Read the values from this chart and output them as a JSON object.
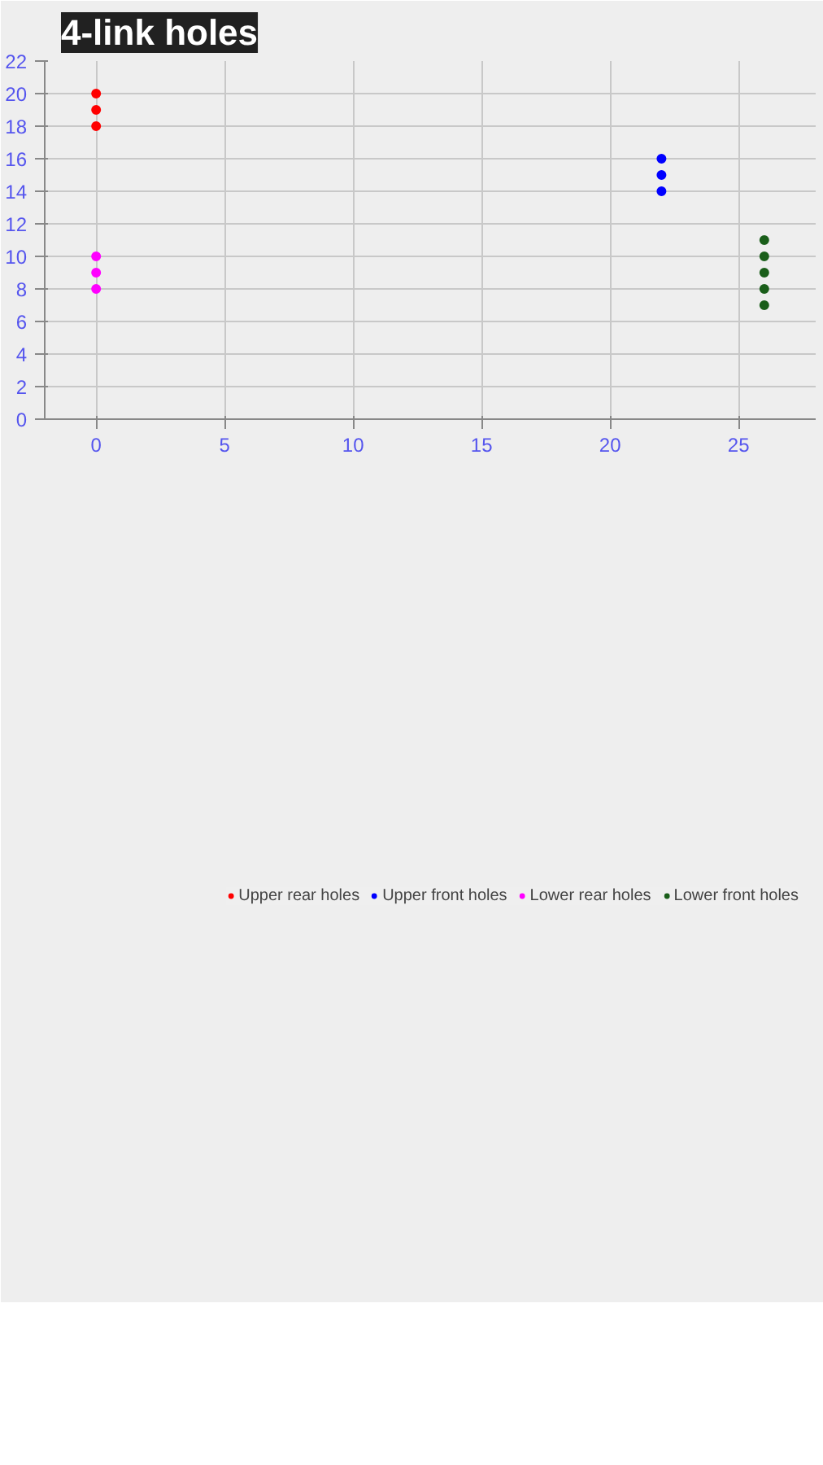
{
  "chart_data": {
    "type": "scatter",
    "title": "4-link holes",
    "xlim": [
      -2,
      28
    ],
    "xticks": [
      0,
      5,
      10,
      15,
      20,
      25
    ],
    "ylim": [
      0,
      22
    ],
    "yticks": [
      0,
      2,
      4,
      6,
      8,
      10,
      12,
      14,
      16,
      18,
      20,
      22
    ],
    "grid": true,
    "legend": "bottom",
    "marker": "circle",
    "series": [
      {
        "name": "Upper rear holes",
        "color": "#ff0000",
        "x": [
          0,
          0,
          0
        ],
        "values": [
          18,
          19,
          20
        ]
      },
      {
        "name": "Upper front holes",
        "color": "#0000ff",
        "x": [
          22,
          22,
          22
        ],
        "values": [
          14,
          15,
          16
        ]
      },
      {
        "name": "Lower rear holes",
        "color": "#ff00ff",
        "x": [
          0,
          0,
          0
        ],
        "values": [
          8,
          9,
          10
        ]
      },
      {
        "name": "Lower front holes",
        "color": "#1a5e1a",
        "x": [
          26,
          26,
          26,
          26,
          26
        ],
        "values": [
          7,
          8,
          9,
          10,
          11
        ]
      }
    ]
  }
}
